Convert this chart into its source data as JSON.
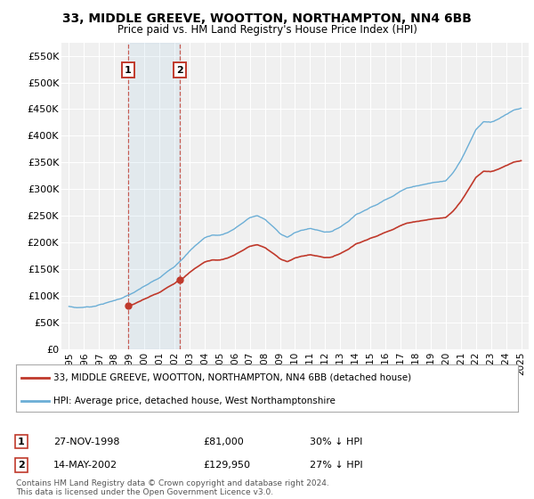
{
  "title": "33, MIDDLE GREEVE, WOOTTON, NORTHAMPTON, NN4 6BB",
  "subtitle": "Price paid vs. HM Land Registry's House Price Index (HPI)",
  "legend_line1": "33, MIDDLE GREEVE, WOOTTON, NORTHAMPTON, NN4 6BB (detached house)",
  "legend_line2": "HPI: Average price, detached house, West Northamptonshire",
  "footer": "Contains HM Land Registry data © Crown copyright and database right 2024.\nThis data is licensed under the Open Government Licence v3.0.",
  "sale1_label": "1",
  "sale1_date": "27-NOV-1998",
  "sale1_price": "£81,000",
  "sale1_hpi": "30% ↓ HPI",
  "sale2_label": "2",
  "sale2_date": "14-MAY-2002",
  "sale2_price": "£129,950",
  "sale2_hpi": "27% ↓ HPI",
  "sale1_year": 1998.9,
  "sale1_value": 81000,
  "sale2_year": 2002.37,
  "sale2_value": 129950,
  "hpi_color": "#6baed6",
  "price_color": "#c0392b",
  "ylim_min": 0,
  "ylim_max": 575000,
  "ytick_values": [
    0,
    50000,
    100000,
    150000,
    200000,
    250000,
    300000,
    350000,
    400000,
    450000,
    500000,
    550000
  ],
  "background_color": "#ffffff",
  "plot_bg_color": "#f0f0f0",
  "grid_color": "#ffffff",
  "hpi_anchors_years": [
    1995,
    1995.5,
    1996,
    1996.5,
    1997,
    1997.5,
    1998,
    1998.5,
    1999,
    1999.5,
    2000,
    2000.5,
    2001,
    2001.5,
    2002,
    2002.5,
    2003,
    2003.5,
    2004,
    2004.5,
    2005,
    2005.5,
    2006,
    2006.5,
    2007,
    2007.5,
    2008,
    2008.5,
    2009,
    2009.5,
    2010,
    2010.5,
    2011,
    2011.5,
    2012,
    2012.5,
    2013,
    2013.5,
    2014,
    2014.5,
    2015,
    2015.5,
    2016,
    2016.5,
    2017,
    2017.5,
    2018,
    2018.5,
    2019,
    2019.5,
    2020,
    2020.5,
    2021,
    2021.5,
    2022,
    2022.5,
    2023,
    2023.5,
    2024,
    2024.5,
    2025
  ],
  "hpi_anchors_vals": [
    80000,
    78000,
    79000,
    80000,
    84000,
    88000,
    92000,
    97000,
    103000,
    110000,
    118000,
    126000,
    133000,
    144000,
    155000,
    170000,
    185000,
    198000,
    210000,
    215000,
    215000,
    220000,
    228000,
    238000,
    248000,
    252000,
    245000,
    232000,
    218000,
    212000,
    220000,
    225000,
    228000,
    225000,
    222000,
    224000,
    232000,
    242000,
    255000,
    263000,
    270000,
    276000,
    285000,
    293000,
    302000,
    308000,
    312000,
    315000,
    318000,
    320000,
    322000,
    338000,
    362000,
    390000,
    420000,
    435000,
    435000,
    440000,
    448000,
    455000,
    458000
  ]
}
